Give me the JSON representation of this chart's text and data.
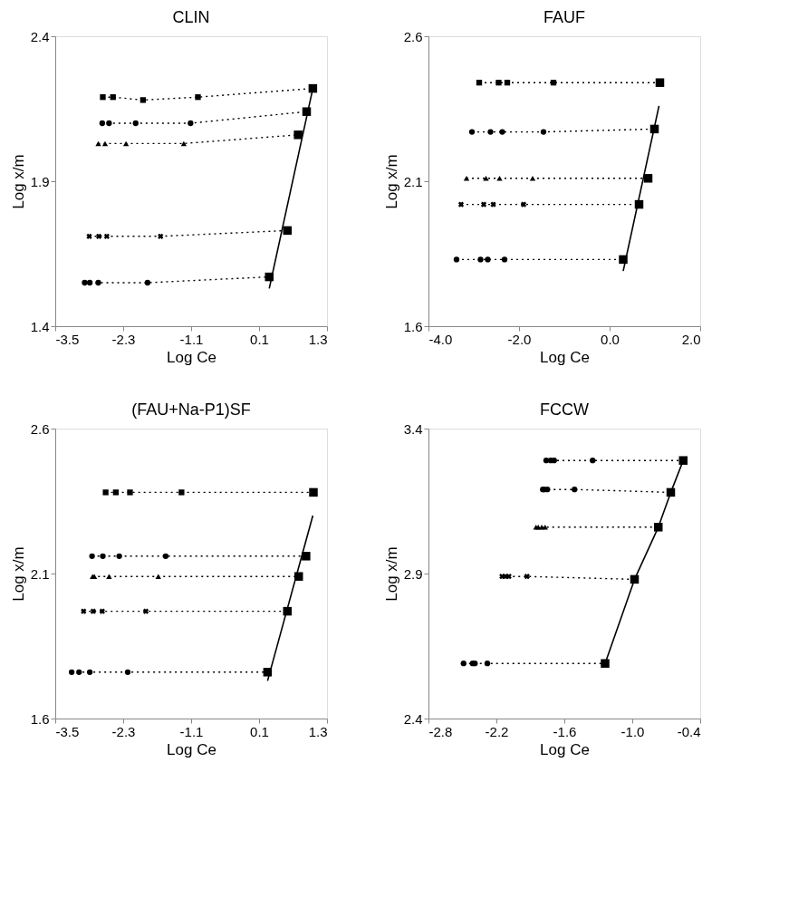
{
  "chart_data": [
    {
      "type": "scatter",
      "title": "CLIN",
      "xlabel": "Log Ce",
      "ylabel": "Log x/m",
      "xlim": [
        -3.5,
        1.3
      ],
      "xticks": [
        {
          "value": -3.5,
          "label": "-3.5"
        },
        {
          "value": -2.3,
          "label": "-2.3"
        },
        {
          "value": -1.1,
          "label": "-1.1"
        },
        {
          "value": 0.1,
          "label": "0.1"
        },
        {
          "value": 1.3,
          "label": "1.3"
        }
      ],
      "ylim": [
        1.4,
        2.4
      ],
      "yticks": [
        {
          "value": 1.4,
          "label": "1.4"
        },
        {
          "value": 1.9,
          "label": "1.9"
        },
        {
          "value": 2.4,
          "label": "2.4"
        }
      ],
      "grid": false,
      "series": [
        {
          "type": "line",
          "line_style": "dotted",
          "marker": "none",
          "color": "#000000",
          "x": [
            -2.66,
            -2.48,
            -1.95,
            -0.98,
            1.05
          ],
          "values": [
            2.19,
            2.19,
            2.18,
            2.19,
            2.22
          ]
        },
        {
          "type": "line",
          "line_style": "dotted",
          "marker": "none",
          "color": "#000000",
          "x": [
            -2.67,
            -2.55,
            -2.08,
            -1.11,
            0.94
          ],
          "values": [
            2.1,
            2.1,
            2.1,
            2.1,
            2.14
          ]
        },
        {
          "type": "line",
          "line_style": "dotted",
          "marker": "none",
          "color": "#000000",
          "x": [
            -2.74,
            -2.62,
            -2.25,
            -1.23,
            0.79
          ],
          "values": [
            2.03,
            2.03,
            2.03,
            2.03,
            2.06
          ]
        },
        {
          "type": "line",
          "line_style": "dotted",
          "marker": "none",
          "color": "#000000",
          "x": [
            -2.9,
            -2.73,
            -2.59,
            -1.64,
            0.6
          ],
          "values": [
            1.71,
            1.71,
            1.71,
            1.71,
            1.73
          ]
        },
        {
          "type": "line",
          "line_style": "dotted",
          "marker": "none",
          "color": "#000000",
          "x": [
            -2.98,
            -2.89,
            -2.74,
            -1.87,
            0.28
          ],
          "values": [
            1.55,
            1.55,
            1.55,
            1.55,
            1.57
          ]
        },
        {
          "type": "line",
          "line_style": "solid",
          "marker": "none",
          "color": "#000000",
          "x": [
            0.28,
            1.05
          ],
          "values": [
            1.53,
            2.22
          ]
        },
        {
          "marker": "square",
          "color": "#000000",
          "x": [
            -2.66,
            -2.48,
            -1.95,
            -0.98
          ],
          "values": [
            2.19,
            2.19,
            2.18,
            2.19
          ]
        },
        {
          "marker": "circle",
          "color": "#000000",
          "x": [
            -2.67,
            -2.55,
            -2.08,
            -1.11
          ],
          "values": [
            2.1,
            2.1,
            2.1,
            2.1
          ]
        },
        {
          "marker": "triangle",
          "color": "#000000",
          "x": [
            -2.74,
            -2.62,
            -2.25,
            -1.23
          ],
          "values": [
            2.03,
            2.03,
            2.03,
            2.03
          ]
        },
        {
          "marker": "cross",
          "color": "#000000",
          "x": [
            -2.9,
            -2.73,
            -2.59,
            -1.64
          ],
          "values": [
            1.71,
            1.71,
            1.71,
            1.71
          ]
        },
        {
          "marker": "circle",
          "color": "#000000",
          "x": [
            -2.98,
            -2.89,
            -2.74,
            -1.87
          ],
          "values": [
            1.55,
            1.55,
            1.55,
            1.55
          ]
        },
        {
          "marker": "square",
          "color": "#000000",
          "x": [
            1.05,
            0.94,
            0.79,
            0.6,
            0.28
          ],
          "values": [
            2.22,
            2.14,
            2.06,
            1.73,
            1.57
          ]
        }
      ]
    },
    {
      "type": "scatter",
      "title": "FAUF",
      "xlabel": "Log Ce",
      "ylabel": "Log x/m",
      "xlim": [
        -4.0,
        2.0
      ],
      "xticks": [
        {
          "value": -4.0,
          "label": "-4.0"
        },
        {
          "value": -2.0,
          "label": "-2.0"
        },
        {
          "value": 0.0,
          "label": "0.0"
        },
        {
          "value": 2.0,
          "label": "2.0"
        }
      ],
      "ylim": [
        1.6,
        2.6
      ],
      "yticks": [
        {
          "value": 1.6,
          "label": "1.6"
        },
        {
          "value": 2.1,
          "label": "2.1"
        },
        {
          "value": 2.6,
          "label": "2.6"
        }
      ],
      "grid": false,
      "series": [
        {
          "type": "line",
          "line_style": "dotted",
          "marker": "none",
          "color": "#000000",
          "x": [
            -2.88,
            -2.45,
            -2.26,
            -1.24,
            1.11
          ],
          "values": [
            2.44,
            2.44,
            2.44,
            2.44,
            2.44
          ]
        },
        {
          "type": "line",
          "line_style": "dotted",
          "marker": "none",
          "color": "#000000",
          "x": [
            -3.04,
            -2.63,
            -2.37,
            -1.46,
            0.99
          ],
          "values": [
            2.27,
            2.27,
            2.27,
            2.27,
            2.28
          ]
        },
        {
          "type": "line",
          "line_style": "dotted",
          "marker": "none",
          "color": "#000000",
          "x": [
            -3.16,
            -2.73,
            -2.43,
            -1.7,
            0.85
          ],
          "values": [
            2.11,
            2.11,
            2.11,
            2.11,
            2.11
          ]
        },
        {
          "type": "line",
          "line_style": "dotted",
          "marker": "none",
          "color": "#000000",
          "x": [
            -3.28,
            -2.78,
            -2.57,
            -1.9,
            0.65
          ],
          "values": [
            2.02,
            2.02,
            2.02,
            2.02,
            2.02
          ]
        },
        {
          "type": "line",
          "line_style": "dotted",
          "marker": "none",
          "color": "#000000",
          "x": [
            -3.38,
            -2.85,
            -2.69,
            -2.32,
            0.3
          ],
          "values": [
            1.83,
            1.83,
            1.83,
            1.83,
            1.83
          ]
        },
        {
          "type": "line",
          "line_style": "solid",
          "marker": "none",
          "color": "#000000",
          "x": [
            0.3,
            1.09
          ],
          "values": [
            1.79,
            2.36
          ]
        },
        {
          "marker": "square",
          "color": "#000000",
          "x": [
            -2.88,
            -2.45,
            -2.26,
            -1.24
          ],
          "values": [
            2.44,
            2.44,
            2.44,
            2.44
          ]
        },
        {
          "marker": "circle",
          "color": "#000000",
          "x": [
            -3.04,
            -2.63,
            -2.37,
            -1.46
          ],
          "values": [
            2.27,
            2.27,
            2.27,
            2.27
          ]
        },
        {
          "marker": "triangle",
          "color": "#000000",
          "x": [
            -3.16,
            -2.73,
            -2.43,
            -1.7
          ],
          "values": [
            2.11,
            2.11,
            2.11,
            2.11
          ]
        },
        {
          "marker": "cross",
          "color": "#000000",
          "x": [
            -3.28,
            -2.78,
            -2.57,
            -1.9
          ],
          "values": [
            2.02,
            2.02,
            2.02,
            2.02
          ]
        },
        {
          "marker": "circle",
          "color": "#000000",
          "x": [
            -3.38,
            -2.85,
            -2.69,
            -2.32
          ],
          "values": [
            1.83,
            1.83,
            1.83,
            1.83
          ]
        },
        {
          "marker": "square",
          "color": "#000000",
          "x": [
            1.11,
            0.99,
            0.85,
            0.65,
            0.3
          ],
          "values": [
            2.44,
            2.28,
            2.11,
            2.02,
            1.83
          ]
        }
      ]
    },
    {
      "type": "scatter",
      "title": "(FAU+Na-P1)SF",
      "xlabel": "Log Ce",
      "ylabel": "Log x/m",
      "xlim": [
        -3.5,
        1.3
      ],
      "xticks": [
        {
          "value": -3.5,
          "label": "-3.5"
        },
        {
          "value": -2.3,
          "label": "-2.3"
        },
        {
          "value": -1.1,
          "label": "-1.1"
        },
        {
          "value": 0.1,
          "label": "0.1"
        },
        {
          "value": 1.3,
          "label": "1.3"
        }
      ],
      "ylim": [
        1.6,
        2.6
      ],
      "yticks": [
        {
          "value": 1.6,
          "label": "1.6"
        },
        {
          "value": 2.1,
          "label": "2.1"
        },
        {
          "value": 2.6,
          "label": "2.6"
        }
      ],
      "grid": false,
      "series": [
        {
          "type": "line",
          "line_style": "dotted",
          "marker": "none",
          "color": "#000000",
          "x": [
            -2.61,
            -2.43,
            -2.18,
            -1.27,
            1.06
          ],
          "values": [
            2.38,
            2.38,
            2.38,
            2.38,
            2.38
          ]
        },
        {
          "type": "line",
          "line_style": "dotted",
          "marker": "none",
          "color": "#000000",
          "x": [
            -2.85,
            -2.66,
            -2.37,
            -1.55,
            0.93
          ],
          "values": [
            2.16,
            2.16,
            2.16,
            2.16,
            2.16
          ]
        },
        {
          "type": "line",
          "line_style": "dotted",
          "marker": "none",
          "color": "#000000",
          "x": [
            -2.84,
            -2.81,
            -2.55,
            -1.68,
            0.8
          ],
          "values": [
            2.09,
            2.09,
            2.09,
            2.09,
            2.09
          ]
        },
        {
          "type": "line",
          "line_style": "dotted",
          "marker": "none",
          "color": "#000000",
          "x": [
            -3.0,
            -2.83,
            -2.67,
            -1.9,
            0.6
          ],
          "values": [
            1.97,
            1.97,
            1.97,
            1.97,
            1.97
          ]
        },
        {
          "type": "line",
          "line_style": "dotted",
          "marker": "none",
          "color": "#000000",
          "x": [
            -3.21,
            -3.08,
            -2.89,
            -2.22,
            0.25
          ],
          "values": [
            1.76,
            1.76,
            1.76,
            1.76,
            1.76
          ]
        },
        {
          "type": "line",
          "line_style": "solid",
          "marker": "none",
          "color": "#000000",
          "x": [
            0.25,
            1.05
          ],
          "values": [
            1.73,
            2.3
          ]
        },
        {
          "marker": "square",
          "color": "#000000",
          "x": [
            -2.61,
            -2.43,
            -2.18,
            -1.27
          ],
          "values": [
            2.38,
            2.38,
            2.38,
            2.38
          ]
        },
        {
          "marker": "circle",
          "color": "#000000",
          "x": [
            -2.85,
            -2.66,
            -2.37,
            -1.55
          ],
          "values": [
            2.16,
            2.16,
            2.16,
            2.16
          ]
        },
        {
          "marker": "triangle",
          "color": "#000000",
          "x": [
            -2.84,
            -2.81,
            -2.55,
            -1.68
          ],
          "values": [
            2.09,
            2.09,
            2.09,
            2.09
          ]
        },
        {
          "marker": "cross",
          "color": "#000000",
          "x": [
            -3.0,
            -2.83,
            -2.67,
            -1.9
          ],
          "values": [
            1.97,
            1.97,
            1.97,
            1.97
          ]
        },
        {
          "marker": "circle",
          "color": "#000000",
          "x": [
            -3.21,
            -3.08,
            -2.89,
            -2.22
          ],
          "values": [
            1.76,
            1.76,
            1.76,
            1.76
          ]
        },
        {
          "marker": "square",
          "color": "#000000",
          "x": [
            1.06,
            0.93,
            0.8,
            0.6,
            0.25
          ],
          "values": [
            2.38,
            2.16,
            2.09,
            1.97,
            1.76
          ]
        }
      ]
    },
    {
      "type": "scatter",
      "title": "FCCW",
      "xlabel": "Log Ce",
      "ylabel": "Log x/m",
      "xlim": [
        -2.8,
        -0.4
      ],
      "xticks": [
        {
          "value": -2.8,
          "label": "-2.8"
        },
        {
          "value": -2.2,
          "label": "-2.2"
        },
        {
          "value": -1.6,
          "label": "-1.6"
        },
        {
          "value": -1.0,
          "label": "-1.0"
        },
        {
          "value": -0.4,
          "label": "-0.4"
        }
      ],
      "ylim": [
        2.4,
        3.4
      ],
      "yticks": [
        {
          "value": 2.4,
          "label": "2.4"
        },
        {
          "value": 2.9,
          "label": "2.9"
        },
        {
          "value": 3.4,
          "label": "3.4"
        }
      ],
      "grid": false,
      "series": [
        {
          "type": "line",
          "line_style": "dotted",
          "marker": "none",
          "color": "#000000",
          "x": [
            -1.76,
            -1.72,
            -1.69,
            -1.35,
            -0.55
          ],
          "values": [
            3.29,
            3.29,
            3.29,
            3.29,
            3.29
          ]
        },
        {
          "type": "line",
          "line_style": "dotted",
          "marker": "none",
          "color": "#000000",
          "x": [
            -1.79,
            -1.78,
            -1.75,
            -1.51,
            -0.66
          ],
          "values": [
            3.19,
            3.19,
            3.19,
            3.19,
            3.18
          ]
        },
        {
          "type": "line",
          "line_style": "dotted",
          "marker": "none",
          "color": "#000000",
          "x": [
            -1.85,
            -1.83,
            -1.8,
            -1.77,
            -0.77
          ],
          "values": [
            3.06,
            3.06,
            3.06,
            3.06,
            3.06
          ]
        },
        {
          "type": "line",
          "line_style": "dotted",
          "marker": "none",
          "color": "#000000",
          "x": [
            -2.15,
            -2.12,
            -2.09,
            -1.93,
            -0.98
          ],
          "values": [
            2.89,
            2.89,
            2.89,
            2.89,
            2.88
          ]
        },
        {
          "type": "line",
          "line_style": "dotted",
          "marker": "none",
          "color": "#000000",
          "x": [
            -2.49,
            -2.41,
            -2.39,
            -2.28,
            -1.24
          ],
          "values": [
            2.59,
            2.59,
            2.59,
            2.59,
            2.59
          ]
        },
        {
          "type": "line",
          "line_style": "solid",
          "marker": "none",
          "color": "#000000",
          "x": [
            -1.24,
            -0.98,
            -0.77,
            -0.66,
            -0.55
          ],
          "values": [
            2.59,
            2.88,
            3.06,
            3.18,
            3.29
          ]
        },
        {
          "marker": "circle",
          "color": "#000000",
          "x": [
            -1.76,
            -1.72,
            -1.69,
            -1.35
          ],
          "values": [
            3.29,
            3.29,
            3.29,
            3.29
          ]
        },
        {
          "marker": "circle",
          "color": "#000000",
          "x": [
            -1.79,
            -1.78,
            -1.75,
            -1.51
          ],
          "values": [
            3.19,
            3.19,
            3.19,
            3.19
          ]
        },
        {
          "marker": "triangle",
          "color": "#000000",
          "x": [
            -1.85,
            -1.83,
            -1.8,
            -1.77
          ],
          "values": [
            3.06,
            3.06,
            3.06,
            3.06
          ]
        },
        {
          "marker": "cross",
          "color": "#000000",
          "x": [
            -2.15,
            -2.12,
            -2.09,
            -1.93
          ],
          "values": [
            2.89,
            2.89,
            2.89,
            2.89
          ]
        },
        {
          "marker": "circle",
          "color": "#000000",
          "x": [
            -2.49,
            -2.41,
            -2.39,
            -2.28
          ],
          "values": [
            2.59,
            2.59,
            2.59,
            2.59
          ]
        },
        {
          "marker": "square",
          "color": "#000000",
          "x": [
            -0.55,
            -0.66,
            -0.77,
            -0.98,
            -1.24
          ],
          "values": [
            3.29,
            3.18,
            3.06,
            2.88,
            2.59
          ]
        }
      ]
    }
  ]
}
